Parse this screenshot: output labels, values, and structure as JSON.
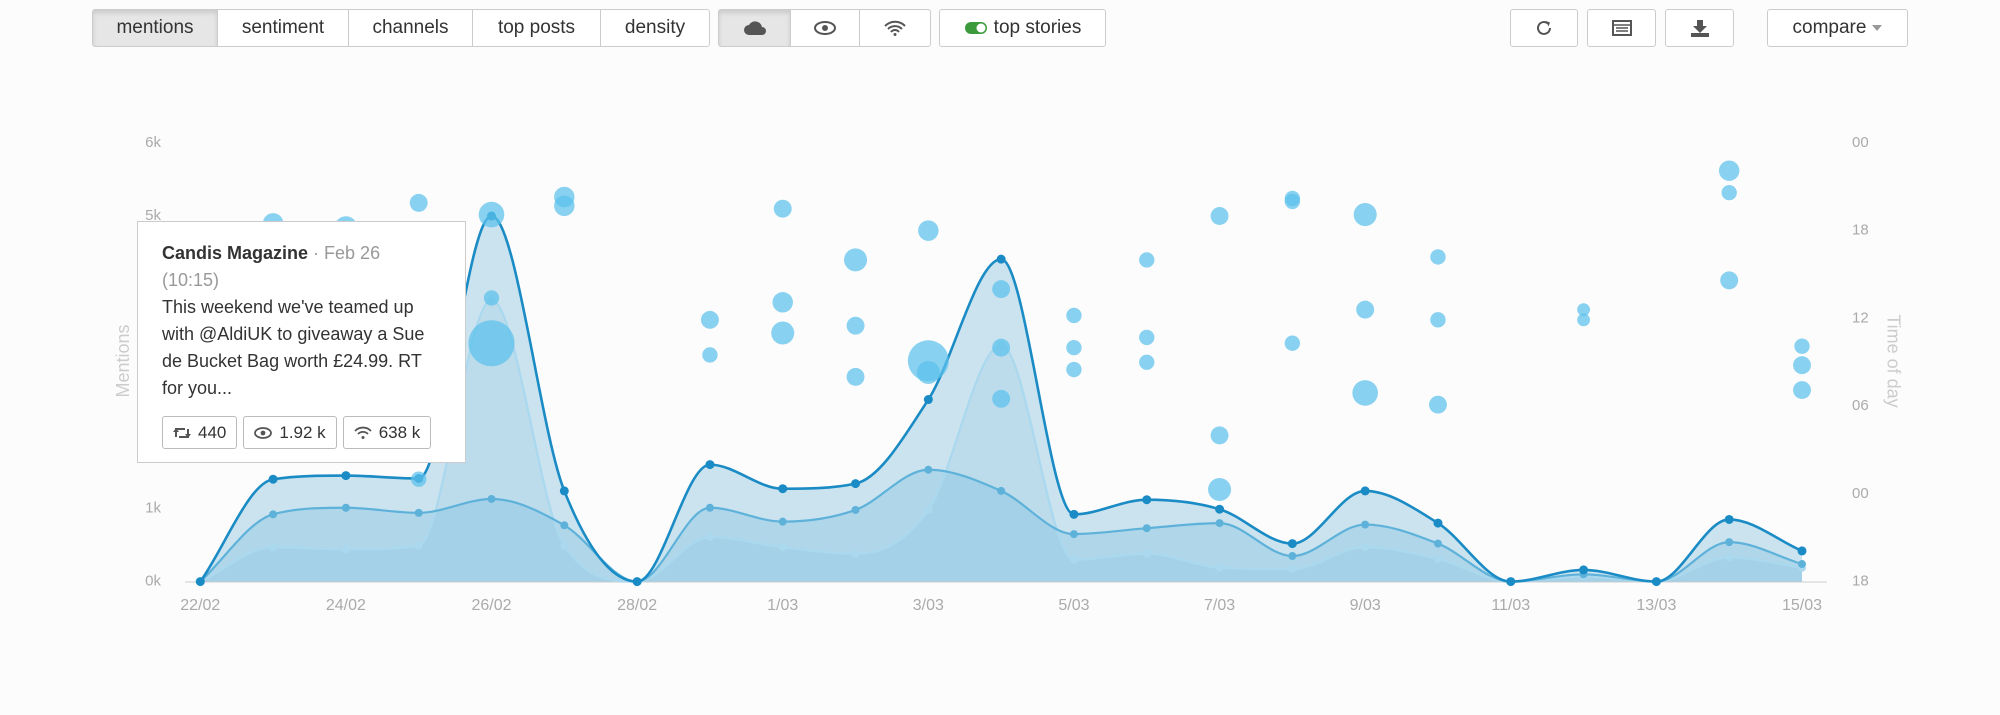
{
  "toolbar": {
    "tabs": [
      "mentions",
      "sentiment",
      "channels",
      "top posts",
      "density"
    ],
    "toggle": "top stories",
    "compare": "compare"
  },
  "tooltip": {
    "author": "Candis Magazine",
    "date": "· Feb 26 (10:15)",
    "text": "This weekend we've teamed up with @AldiUK to giveaway a Sue de Bucket Bag worth £24.99. RT for you...",
    "retweets": "440",
    "views": "1.92 k",
    "reach": "638 k"
  },
  "chart_data": [
    {
      "type": "line",
      "ylabel": "Mentions",
      "categories": [
        "22/02",
        null,
        "24/02",
        null,
        "26/02",
        null,
        "28/02",
        null,
        "1/03",
        null,
        "3/03",
        null,
        "5/03",
        null,
        "7/03",
        null,
        "9/03",
        null,
        "11/03",
        null,
        "13/03",
        null,
        "15/03"
      ],
      "ylim": [
        0,
        6000
      ],
      "yticks": [
        {
          "value": 0,
          "label": "0k"
        },
        {
          "value": 1000,
          "label": "1k"
        },
        {
          "value": 2000,
          "label": "2k"
        },
        {
          "value": 3000,
          "label": "3k"
        },
        {
          "value": 4000,
          "label": "4k"
        },
        {
          "value": 5000,
          "label": "5k"
        },
        {
          "value": 6000,
          "label": "6k"
        }
      ],
      "series": [
        {
          "color": "#aad8ee",
          "values": [
            0,
            470,
            440,
            490,
            3850,
            490,
            0,
            610,
            470,
            380,
            980,
            3230,
            300,
            380,
            190,
            170,
            470,
            310,
            0,
            70,
            0,
            330,
            190
          ]
        },
        {
          "color": "#5eb2da",
          "values": [
            0,
            920,
            1010,
            940,
            1130,
            770,
            0,
            1010,
            820,
            980,
            1530,
            1240,
            650,
            730,
            800,
            350,
            780,
            520,
            0,
            100,
            0,
            540,
            240
          ]
        },
        {
          "color": "#1a8bc4",
          "values": [
            0,
            1400,
            1450,
            1410,
            5000,
            1240,
            0,
            1600,
            1270,
            1340,
            2490,
            4410,
            920,
            1120,
            990,
            520,
            1240,
            800,
            0,
            160,
            0,
            850,
            420
          ]
        }
      ]
    },
    {
      "type": "scatter",
      "y2label": "Time of day",
      "color": "#5bc0eb",
      "xlim": [
        0,
        22
      ],
      "y2lim": [
        -6,
        24
      ],
      "y2ticks": [
        {
          "value": -6,
          "label": "18"
        },
        {
          "value": 0,
          "label": "00"
        },
        {
          "value": 6,
          "label": "06"
        },
        12,
        18,
        {
          "value": 24,
          "label": "00"
        }
      ],
      "x": [
        1,
        2,
        3,
        4,
        4,
        4,
        3,
        5,
        5,
        7,
        7,
        8,
        8,
        8,
        9,
        9,
        9,
        10,
        10,
        10,
        11,
        11,
        11,
        12,
        12,
        12,
        13,
        13,
        13,
        14,
        14,
        14,
        15,
        15,
        15,
        16,
        16,
        16,
        17,
        17,
        17,
        19,
        19,
        21,
        21,
        21,
        22,
        22,
        22
      ],
      "y": [
        18.5,
        18.2,
        19.9,
        19.1,
        13.4,
        10.3,
        1.0,
        20.3,
        19.7,
        11.9,
        9.5,
        19.5,
        13.1,
        11.0,
        16.0,
        11.5,
        8.0,
        18.0,
        9.1,
        8.3,
        14.0,
        10.0,
        6.5,
        12.2,
        10.0,
        8.5,
        16.0,
        10.7,
        9.0,
        19.0,
        4.0,
        0.3,
        20.2,
        20.0,
        10.3,
        19.1,
        12.6,
        6.9,
        16.2,
        11.9,
        6.1,
        12.6,
        11.9,
        22.1,
        20.6,
        14.6,
        10.1,
        8.8,
        7.1
      ],
      "sizes": [
        8,
        9,
        7,
        10,
        6,
        18,
        6,
        8,
        8,
        7,
        6,
        7,
        8,
        9,
        9,
        7,
        7,
        8,
        16,
        9,
        7,
        7,
        7,
        6,
        6,
        6,
        6,
        6,
        6,
        7,
        7,
        9,
        6,
        6,
        6,
        9,
        7,
        10,
        6,
        6,
        7,
        5,
        5,
        8,
        6,
        7,
        6,
        7,
        7
      ]
    }
  ]
}
